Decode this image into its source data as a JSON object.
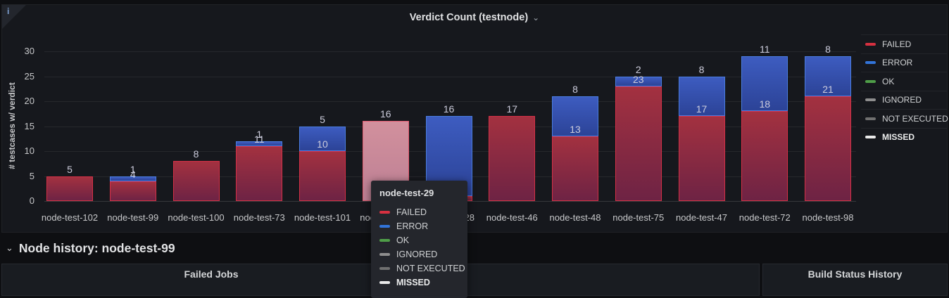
{
  "icons": {
    "info": "i",
    "chevron_down": "⌄"
  },
  "panel": {
    "title": "Verdict Count (testnode)"
  },
  "chart_data": {
    "type": "bar",
    "stacked": true,
    "title": "Verdict Count (testnode)",
    "xlabel": "",
    "ylabel": "# testcases w/ verdict",
    "ylim": [
      0,
      30
    ],
    "yticks": [
      0,
      5,
      10,
      15,
      20,
      25,
      30
    ],
    "grid": true,
    "legend_position": "right",
    "categories": [
      "node-test-102",
      "node-test-99",
      "node-test-100",
      "node-test-73",
      "node-test-101",
      "node-test-29",
      "node-test-28",
      "node-test-46",
      "node-test-48",
      "node-test-75",
      "node-test-47",
      "node-test-72",
      "node-test-98"
    ],
    "series": [
      {
        "name": "FAILED",
        "color": "#e02f44",
        "values": [
          5,
          4,
          8,
          11,
          10,
          16,
          1,
          17,
          13,
          23,
          17,
          18,
          21
        ]
      },
      {
        "name": "ERROR",
        "color": "#3274d9",
        "values": [
          0,
          1,
          0,
          1,
          5,
          0,
          16,
          0,
          8,
          2,
          8,
          11,
          8
        ]
      }
    ],
    "highlighted_category": "node-test-29",
    "highlighted_total": 16
  },
  "legend": {
    "items": [
      {
        "label": "FAILED",
        "color": "#d63040",
        "bold": false
      },
      {
        "label": "ERROR",
        "color": "#3274d9",
        "bold": false
      },
      {
        "label": "OK",
        "color": "#4f9e48",
        "bold": false
      },
      {
        "label": "IGNORED",
        "color": "#8e8e8e",
        "bold": false
      },
      {
        "label": "NOT EXECUTED",
        "color": "#707070",
        "bold": false
      },
      {
        "label": "MISSED",
        "color": "#e9e9e9",
        "bold": true
      }
    ]
  },
  "tooltip": {
    "title": "node-test-29",
    "items": [
      {
        "label": "FAILED",
        "color": "#d63040",
        "bold": false
      },
      {
        "label": "ERROR",
        "color": "#3274d9",
        "bold": false
      },
      {
        "label": "OK",
        "color": "#4f9e48",
        "bold": false
      },
      {
        "label": "IGNORED",
        "color": "#8e8e8e",
        "bold": false
      },
      {
        "label": "NOT EXECUTED",
        "color": "#707070",
        "bold": false
      },
      {
        "label": "MISSED",
        "color": "#e9e9e9",
        "bold": true
      }
    ]
  },
  "row_header": {
    "label": "Node history: node-test-99"
  },
  "bottom_row": {
    "panels": [
      {
        "title": "Failed Jobs"
      },
      {
        "title": ""
      },
      {
        "title": "Build Status History"
      }
    ]
  }
}
